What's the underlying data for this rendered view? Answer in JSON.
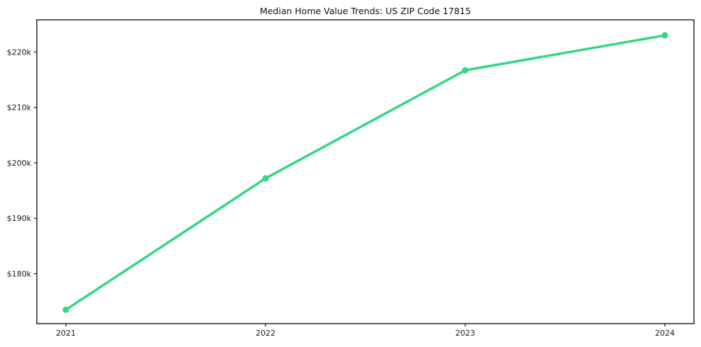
{
  "chart_data": {
    "type": "line",
    "title": "Median Home Value Trends: US ZIP Code 17815",
    "categories": [
      "2021",
      "2022",
      "2023",
      "2024"
    ],
    "series": [
      {
        "name": "Median Home Value",
        "values": [
          173500,
          197200,
          216700,
          223000
        ]
      }
    ],
    "xlabel": "",
    "ylabel": "",
    "ylim": [
      171000,
      225800
    ],
    "yticks": [
      180000,
      190000,
      200000,
      210000,
      220000
    ],
    "ytick_labels": [
      "$180k",
      "$190k",
      "$200k",
      "$210k",
      "$220k"
    ],
    "grid": false,
    "legend_position": "none",
    "line_color": "#35d786",
    "marker": "circle"
  }
}
